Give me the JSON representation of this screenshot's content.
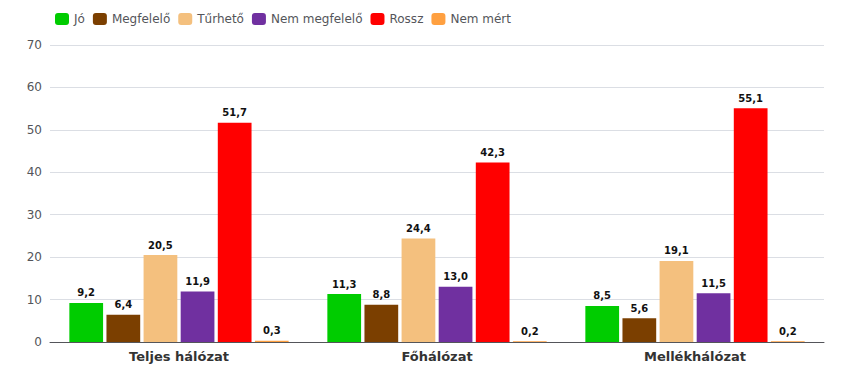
{
  "chart_data": {
    "type": "bar",
    "categories": [
      "Teljes hálózat",
      "Főhálózat",
      "Mellékhálózat"
    ],
    "series": [
      {
        "name": "Jó",
        "color": "#00CC00",
        "values": [
          9.2,
          11.3,
          8.5
        ],
        "value_labels": [
          "9,2",
          "11,3",
          "8,5"
        ]
      },
      {
        "name": "Megfelelő",
        "color": "#7B3F00",
        "values": [
          6.4,
          8.8,
          5.6
        ],
        "value_labels": [
          "6,4",
          "8,8",
          "5,6"
        ]
      },
      {
        "name": "Tűrhető",
        "color": "#F4C07E",
        "values": [
          20.5,
          24.4,
          19.1
        ],
        "value_labels": [
          "20,5",
          "24,4",
          "19,1"
        ]
      },
      {
        "name": "Nem megfelelő",
        "color": "#7030A0",
        "values": [
          11.9,
          13.0,
          11.5
        ],
        "value_labels": [
          "11,9",
          "13,0",
          "11,5"
        ]
      },
      {
        "name": "Rossz",
        "color": "#FF0000",
        "values": [
          51.7,
          42.3,
          55.1
        ],
        "value_labels": [
          "51,7",
          "42,3",
          "55,1"
        ]
      },
      {
        "name": "Nem mért",
        "color": "#FFA040",
        "values": [
          0.3,
          0.2,
          0.2
        ],
        "value_labels": [
          "0,3",
          "0,2",
          "0,2"
        ]
      }
    ],
    "ylim": [
      0,
      70
    ],
    "yticks": [
      0,
      10,
      20,
      30,
      40,
      50,
      60,
      70
    ],
    "grid": true,
    "legend": "upper left",
    "data_labels": true
  }
}
